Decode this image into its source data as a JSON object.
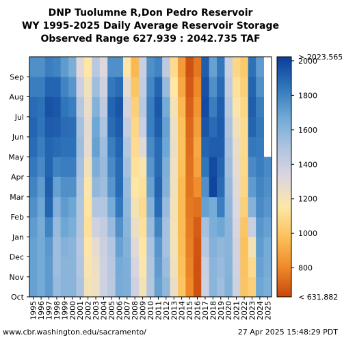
{
  "chart_data": {
    "type": "heatmap",
    "title": "DNP Tuolumne R,Don Pedro Reservoir",
    "subtitle": "WY 1995-2025 Daily Average Reservoir Storage",
    "range_text": "Observed Range 627.939 : 2042.735 TAF",
    "x": [
      "1995",
      "1996",
      "1997",
      "1998",
      "1999",
      "2000",
      "2001",
      "2002",
      "2003",
      "2004",
      "2005",
      "2006",
      "2007",
      "2008",
      "2009",
      "2010",
      "2011",
      "2012",
      "2013",
      "2014",
      "2015",
      "2016",
      "2017",
      "2018",
      "2019",
      "2020",
      "2021",
      "2022",
      "2023",
      "2024",
      "2025"
    ],
    "y": [
      "Oct",
      "Nov",
      "Dec",
      "Jan",
      "Feb",
      "Mar",
      "Apr",
      "May",
      "Jun",
      "Jul",
      "Aug",
      "Sep"
    ],
    "values": [
      [
        1700,
        1700,
        1700,
        1720,
        1760,
        1800,
        1840,
        1880,
        1900,
        1880,
        1820,
        1760
      ],
      [
        1660,
        1660,
        1660,
        1650,
        1680,
        1720,
        1780,
        1820,
        1850,
        1860,
        1820,
        1760
      ],
      [
        1720,
        1720,
        1730,
        1800,
        1900,
        1920,
        1900,
        1900,
        1930,
        1960,
        1900,
        1820
      ],
      [
        1560,
        1540,
        1540,
        1560,
        1620,
        1700,
        1800,
        1880,
        1920,
        1940,
        1900,
        1800
      ],
      [
        1600,
        1600,
        1620,
        1680,
        1720,
        1760,
        1820,
        1860,
        1880,
        1850,
        1800,
        1720
      ],
      [
        1600,
        1600,
        1600,
        1640,
        1680,
        1760,
        1820,
        1860,
        1870,
        1820,
        1740,
        1640
      ],
      [
        1500,
        1480,
        1470,
        1480,
        1490,
        1500,
        1520,
        1540,
        1520,
        1470,
        1390,
        1300
      ],
      [
        1200,
        1180,
        1150,
        1120,
        1140,
        1170,
        1220,
        1280,
        1290,
        1260,
        1220,
        1150
      ],
      [
        1230,
        1240,
        1280,
        1380,
        1480,
        1580,
        1640,
        1700,
        1680,
        1620,
        1540,
        1460
      ],
      [
        1380,
        1380,
        1390,
        1420,
        1480,
        1540,
        1560,
        1540,
        1500,
        1440,
        1380,
        1320
      ],
      [
        1450,
        1460,
        1480,
        1560,
        1660,
        1740,
        1780,
        1820,
        1880,
        1900,
        1840,
        1760
      ],
      [
        1650,
        1660,
        1700,
        1760,
        1840,
        1880,
        1880,
        1900,
        1930,
        1950,
        1880,
        1760
      ],
      [
        1640,
        1630,
        1620,
        1600,
        1580,
        1560,
        1520,
        1480,
        1420,
        1360,
        1280,
        1150
      ],
      [
        1380,
        1350,
        1300,
        1250,
        1200,
        1150,
        1120,
        1100,
        1080,
        1050,
        1000,
        950
      ],
      [
        1200,
        1170,
        1150,
        1120,
        1100,
        1120,
        1180,
        1300,
        1400,
        1450,
        1420,
        1400
      ],
      [
        1480,
        1490,
        1510,
        1560,
        1620,
        1700,
        1740,
        1780,
        1820,
        1820,
        1790,
        1760
      ],
      [
        1700,
        1720,
        1740,
        1800,
        1880,
        1900,
        1880,
        1880,
        1920,
        1940,
        1900,
        1800
      ],
      [
        1580,
        1550,
        1520,
        1520,
        1560,
        1620,
        1640,
        1680,
        1700,
        1660,
        1560,
        1440
      ],
      [
        1250,
        1220,
        1210,
        1200,
        1200,
        1220,
        1230,
        1250,
        1240,
        1200,
        1150,
        1100
      ],
      [
        1000,
        980,
        970,
        960,
        960,
        960,
        980,
        990,
        980,
        950,
        900,
        860
      ],
      [
        800,
        790,
        780,
        770,
        760,
        750,
        740,
        730,
        720,
        700,
        680,
        660
      ],
      [
        660,
        660,
        670,
        690,
        740,
        820,
        880,
        900,
        870,
        840,
        800,
        760
      ],
      [
        1380,
        1400,
        1460,
        1520,
        1700,
        1760,
        1850,
        1900,
        1950,
        1980,
        1960,
        1920
      ],
      [
        1600,
        1600,
        1620,
        1640,
        1660,
        2000,
        1980,
        1920,
        1880,
        1820,
        1760,
        1700
      ],
      [
        1540,
        1560,
        1580,
        1680,
        1820,
        1880,
        1900,
        1920,
        1930,
        1920,
        1880,
        1840
      ],
      [
        1620,
        1610,
        1600,
        1600,
        1580,
        1560,
        1540,
        1520,
        1500,
        1470,
        1430,
        1400
      ],
      [
        1380,
        1370,
        1360,
        1340,
        1320,
        1300,
        1280,
        1260,
        1220,
        1170,
        1120,
        1080
      ],
      [
        1000,
        990,
        980,
        1000,
        1050,
        1080,
        1090,
        1100,
        1100,
        1080,
        1050,
        1020
      ],
      [
        1050,
        1100,
        1200,
        1400,
        1620,
        1720,
        1780,
        1840,
        1900,
        1920,
        1900,
        1860
      ],
      [
        1680,
        1700,
        1720,
        1740,
        1780,
        1800,
        1820,
        1830,
        1840,
        1820,
        1760,
        1720
      ],
      [
        1640,
        1650,
        1660,
        1700,
        1740,
        1760,
        1780,
        null,
        null,
        null,
        null,
        null
      ]
    ],
    "colorbar": {
      "min": 631.882,
      "max": 2023.565,
      "min_label": "< 631.882",
      "max_label": "> 2023.565",
      "ticks": [
        800,
        1000,
        1200,
        1400,
        1600,
        1800,
        2000
      ],
      "colors": [
        "#c8470c",
        "#ef8a2a",
        "#fbc15a",
        "#fde7a8",
        "#dcd6e0",
        "#adc4e0",
        "#6fa8d6",
        "#2f75ba",
        "#0a3d9a"
      ]
    }
  },
  "footer": {
    "left": "www.cbr.washington.edu/sacramento/",
    "right": "27 Apr 2025 15:48:29 PDT"
  }
}
